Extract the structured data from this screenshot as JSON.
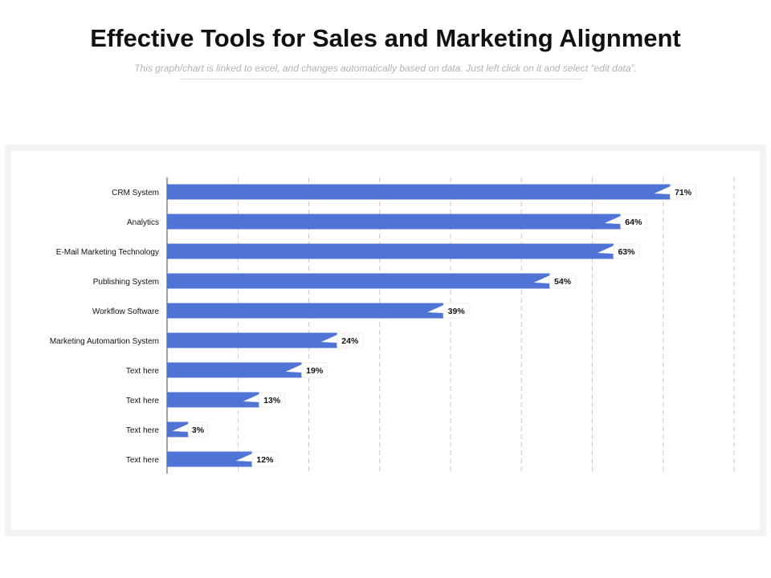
{
  "header": {
    "title": "Effective Tools for Sales and Marketing Alignment",
    "subtitle": "This graph/chart is linked to excel, and changes automatically based on data. Just left click on it and select “edit data”."
  },
  "colors": {
    "bar": "#4f74d6",
    "grid": "#c9c9c9",
    "axis": "#444444",
    "label_text": "#111111"
  },
  "chart_data": {
    "type": "bar",
    "orientation": "horizontal",
    "categories": [
      "CRM System",
      "Analytics",
      "E-Mail Marketing Technology",
      "Publishing System",
      "Workflow Software",
      "Marketing Automartion System",
      "Text here",
      "Text here",
      "Text here",
      "Text here"
    ],
    "values": [
      71,
      64,
      63,
      54,
      39,
      24,
      19,
      13,
      3,
      12
    ],
    "value_labels": [
      "71%",
      "64%",
      "63%",
      "54%",
      "39%",
      "24%",
      "19%",
      "13%",
      "3%",
      "12%"
    ],
    "xlim": [
      0,
      80
    ],
    "gridlines": [
      0,
      10,
      20,
      30,
      40,
      50,
      60,
      70,
      80
    ],
    "grid": true,
    "title": "",
    "xlabel": "",
    "ylabel": ""
  }
}
